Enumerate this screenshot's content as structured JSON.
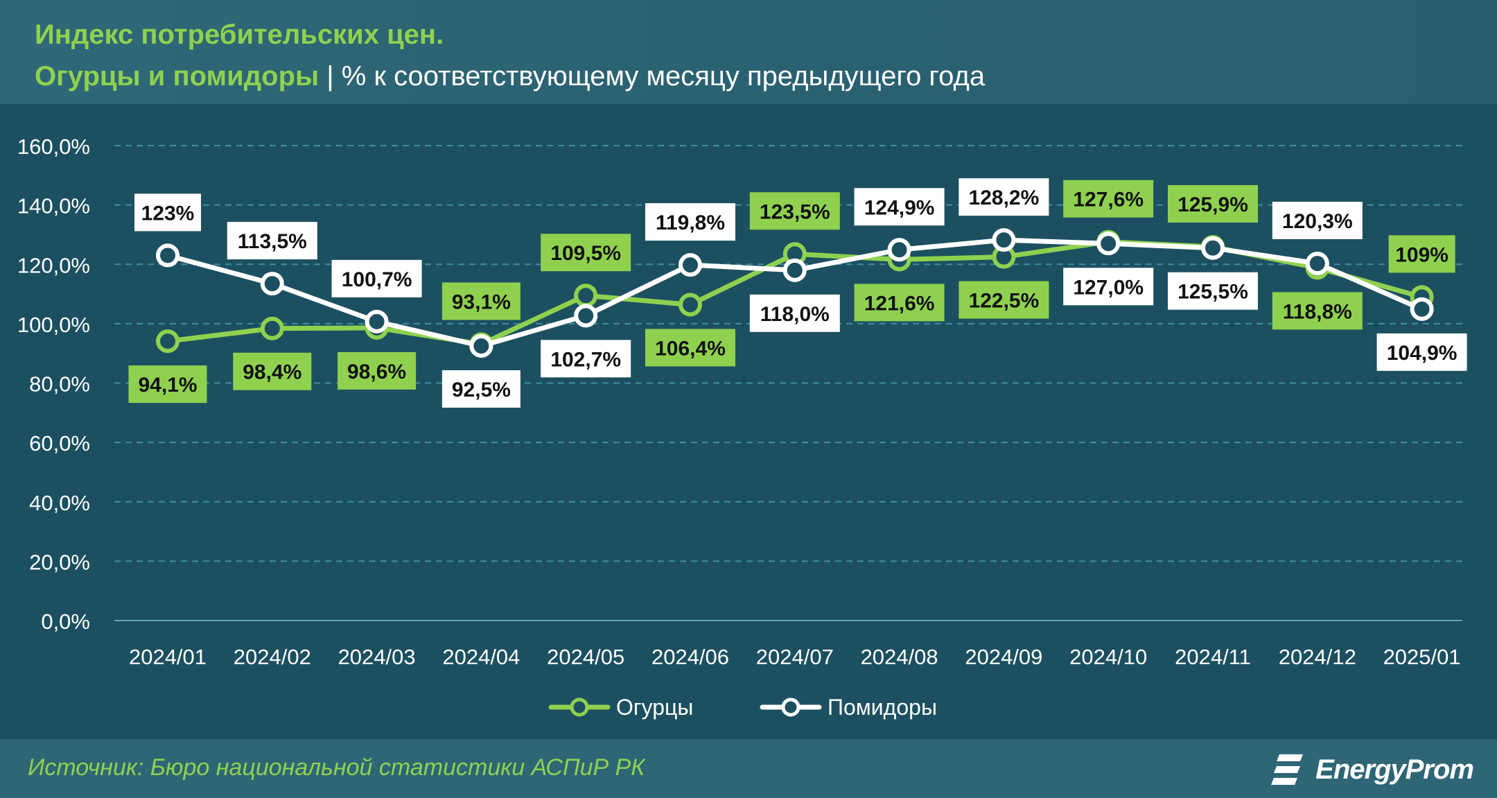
{
  "header": {
    "title": "Индекс потребительских цен.",
    "subtitle_green": "Огурцы и помидоры",
    "subtitle_sep": "|",
    "subtitle_rest": "% к соответствующему месяцу предыдущего года"
  },
  "footer": {
    "source": "Источник: Бюро национальной статистики АСПиР РК",
    "brand": "EnergyProm",
    "brand_icon": "energyprom-logo-icon"
  },
  "colors": {
    "background": "#1c5061",
    "cucumbers": "#8fd14f",
    "tomatoes": "#ffffff",
    "grid": "#3e8ea3",
    "axis_text": "#ffffff"
  },
  "chart_data": {
    "type": "line",
    "categories": [
      "2024/01",
      "2024/02",
      "2024/03",
      "2024/04",
      "2024/05",
      "2024/06",
      "2024/07",
      "2024/08",
      "2024/09",
      "2024/10",
      "2024/11",
      "2024/12",
      "2025/01"
    ],
    "ylim": [
      0,
      160
    ],
    "yticks": [
      0,
      20,
      40,
      60,
      80,
      100,
      120,
      140,
      160
    ],
    "ytick_labels": [
      "0,0%",
      "20,0%",
      "40,0%",
      "60,0%",
      "80,0%",
      "100,0%",
      "120,0%",
      "140,0%",
      "160,0%"
    ],
    "grid": "horizontal dashed",
    "legend": "bottom-center",
    "series": [
      {
        "name": "Огурцы",
        "color": "#8fd14f",
        "values": [
          94.1,
          98.4,
          98.6,
          93.1,
          109.5,
          106.4,
          123.5,
          121.6,
          122.5,
          127.6,
          125.9,
          118.8,
          109.0
        ],
        "labels": [
          "94,1%",
          "98,4%",
          "98,6%",
          "93,1%",
          "109,5%",
          "106,4%",
          "123,5%",
          "121,6%",
          "122,5%",
          "127,6%",
          "125,9%",
          "118,8%",
          "109%"
        ],
        "label_pos": [
          "below",
          "below",
          "below",
          "above",
          "above",
          "below",
          "above",
          "below",
          "below",
          "above",
          "above",
          "below",
          "above"
        ]
      },
      {
        "name": "Помидоры",
        "color": "#ffffff",
        "values": [
          123.0,
          113.5,
          100.7,
          92.5,
          102.7,
          119.8,
          118.0,
          124.9,
          128.2,
          127.0,
          125.5,
          120.3,
          104.9
        ],
        "labels": [
          "123%",
          "113,5%",
          "100,7%",
          "92,5%",
          "102,7%",
          "119,8%",
          "118,0%",
          "124,9%",
          "128,2%",
          "127,0%",
          "125,5%",
          "120,3%",
          "104,9%"
        ],
        "label_pos": [
          "above",
          "above",
          "above",
          "below",
          "below",
          "above",
          "below",
          "above",
          "above",
          "below",
          "below",
          "above",
          "below"
        ]
      }
    ]
  }
}
